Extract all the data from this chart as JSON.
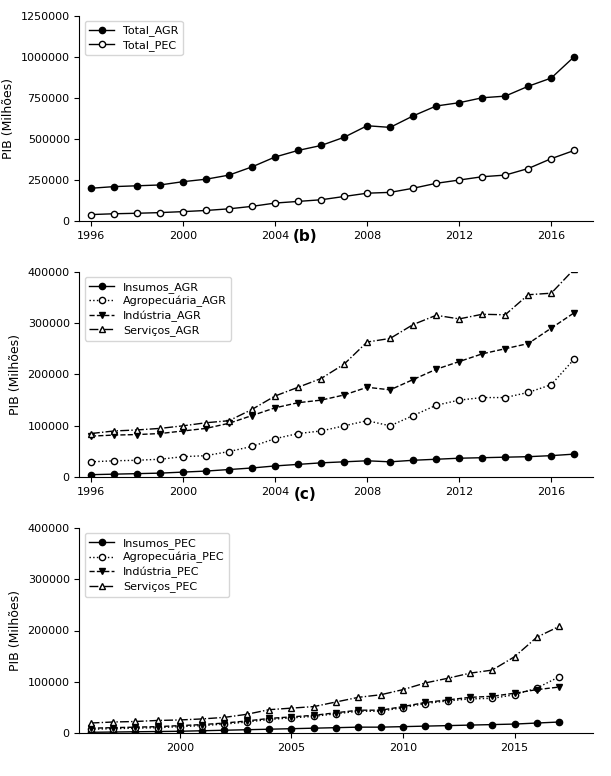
{
  "years_ab": [
    1996,
    1997,
    1998,
    1999,
    2000,
    2001,
    2002,
    2003,
    2004,
    2005,
    2006,
    2007,
    2008,
    2009,
    2010,
    2011,
    2012,
    2013,
    2014,
    2015,
    2016,
    2017
  ],
  "years_c": [
    1996,
    1997,
    1998,
    1999,
    2000,
    2001,
    2002,
    2003,
    2004,
    2005,
    2006,
    2007,
    2008,
    2009,
    2010,
    2011,
    2012,
    2013,
    2014,
    2015,
    2016,
    2017
  ],
  "Total_AGR": [
    200000,
    210000,
    215000,
    220000,
    240000,
    255000,
    280000,
    330000,
    390000,
    430000,
    460000,
    510000,
    580000,
    570000,
    640000,
    700000,
    720000,
    750000,
    760000,
    820000,
    870000,
    1000000
  ],
  "Total_PEC": [
    40000,
    45000,
    48000,
    52000,
    58000,
    65000,
    75000,
    90000,
    110000,
    120000,
    130000,
    150000,
    170000,
    175000,
    200000,
    230000,
    250000,
    270000,
    280000,
    320000,
    380000,
    430000
  ],
  "Insumos_AGR": [
    5000,
    6000,
    7000,
    8000,
    10000,
    12000,
    15000,
    18000,
    22000,
    25000,
    28000,
    30000,
    32000,
    30000,
    33000,
    35000,
    37000,
    38000,
    39000,
    40000,
    42000,
    45000
  ],
  "Agropecuaria_AGR": [
    30000,
    32000,
    33000,
    35000,
    40000,
    42000,
    50000,
    60000,
    75000,
    85000,
    90000,
    100000,
    110000,
    100000,
    120000,
    140000,
    150000,
    155000,
    155000,
    165000,
    180000,
    230000
  ],
  "Industria_AGR": [
    80000,
    82000,
    83000,
    85000,
    90000,
    95000,
    105000,
    120000,
    135000,
    145000,
    150000,
    160000,
    175000,
    170000,
    190000,
    210000,
    225000,
    240000,
    250000,
    260000,
    290000,
    320000
  ],
  "Servicos_AGR": [
    85000,
    90000,
    92000,
    95000,
    100000,
    106000,
    110000,
    132000,
    158000,
    175000,
    192000,
    220000,
    263000,
    270000,
    297000,
    315000,
    308000,
    317000,
    316000,
    355000,
    358000,
    405000
  ],
  "Insumos_PEC": [
    2000,
    2500,
    3000,
    3500,
    4000,
    5000,
    6000,
    7000,
    8000,
    9000,
    10000,
    11000,
    12000,
    12000,
    13000,
    14000,
    15000,
    16000,
    17000,
    18000,
    20000,
    22000
  ],
  "Agropecuaria_PEC": [
    8000,
    9000,
    10000,
    11000,
    13000,
    15000,
    18000,
    22000,
    27000,
    30000,
    33000,
    38000,
    43000,
    43000,
    50000,
    58000,
    63000,
    67000,
    68000,
    75000,
    88000,
    110000
  ],
  "Industria_PEC": [
    10000,
    11000,
    12000,
    13000,
    15000,
    17000,
    20000,
    24000,
    29000,
    32000,
    35000,
    40000,
    45000,
    45000,
    52000,
    60000,
    65000,
    70000,
    72000,
    78000,
    85000,
    90000
  ],
  "Servicos_PEC": [
    20000,
    22000,
    23000,
    25000,
    26000,
    28000,
    31000,
    37000,
    46000,
    49000,
    52000,
    61000,
    70000,
    75000,
    85000,
    98000,
    107000,
    117000,
    123000,
    149000,
    187000,
    208000
  ],
  "label_b": "(b)",
  "label_c": "(c)",
  "ylabel": "PIB (Milhões)",
  "subplot_a_ylim": [
    0,
    1250000
  ],
  "subplot_b_ylim": [
    0,
    400000
  ],
  "subplot_c_ylim": [
    0,
    400000
  ],
  "xticks_ab": [
    1996,
    2000,
    2004,
    2008,
    2012,
    2016
  ],
  "xticks_c": [
    2000,
    2005,
    2010,
    2015
  ]
}
